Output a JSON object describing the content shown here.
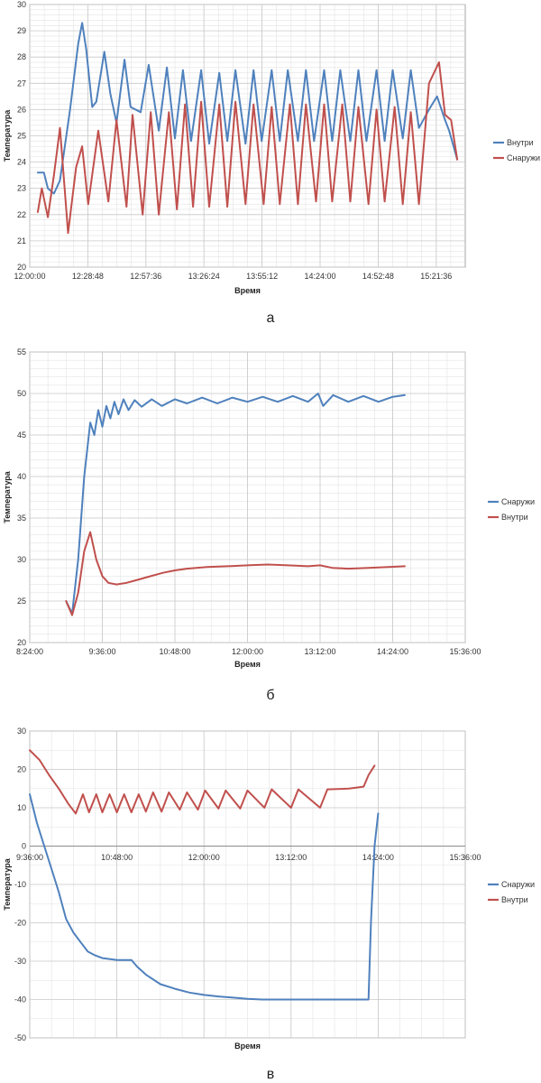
{
  "chart_data": [
    {
      "type": "line",
      "caption": "а",
      "xlabel": "Время",
      "ylabel": "Температура",
      "ylim": [
        20,
        30
      ],
      "yticks": [
        20,
        21,
        22,
        23,
        24,
        25,
        26,
        27,
        28,
        29,
        30
      ],
      "xlim": [
        "12:00:00",
        "15:36:00"
      ],
      "xticks": [
        "12:00:00",
        "12:28:48",
        "12:57:36",
        "13:26:24",
        "13:55:12",
        "14:24:00",
        "14:52:48",
        "15:21:36"
      ],
      "grid": true,
      "legend_position": "right",
      "series": [
        {
          "name": "Внутри",
          "color": "#4f81bd",
          "x": [
            "12:04:00",
            "12:07:00",
            "12:09:00",
            "12:12:00",
            "12:15:00",
            "12:20:00",
            "12:24:00",
            "12:26:00",
            "12:28:00",
            "12:31:00",
            "12:33:00",
            "12:37:00",
            "12:40:00",
            "12:43:00",
            "12:47:00",
            "12:50:00",
            "12:55:00",
            "12:59:00",
            "13:04:00",
            "13:08:00",
            "13:12:00",
            "13:16:00",
            "13:20:00",
            "13:25:00",
            "13:29:00",
            "13:34:00",
            "13:38:00",
            "13:42:00",
            "13:47:00",
            "13:51:00",
            "13:55:00",
            "14:00:00",
            "14:04:00",
            "14:08:00",
            "14:13:00",
            "14:17:00",
            "14:21:00",
            "14:26:00",
            "14:30:00",
            "14:34:00",
            "14:39:00",
            "14:43:00",
            "14:47:00",
            "14:52:00",
            "14:56:00",
            "15:00:00",
            "15:05:00",
            "15:09:00",
            "15:13:00",
            "15:18:00",
            "15:22:00",
            "15:26:00",
            "15:28:00",
            "15:32:00"
          ],
          "values": [
            23.6,
            23.6,
            23.0,
            22.8,
            23.3,
            26.0,
            28.5,
            29.3,
            28.3,
            26.1,
            26.3,
            28.2,
            26.6,
            25.5,
            27.9,
            26.1,
            25.9,
            27.7,
            25.2,
            27.6,
            24.9,
            27.5,
            24.8,
            27.5,
            24.7,
            27.4,
            24.8,
            27.5,
            24.7,
            27.5,
            24.8,
            27.5,
            24.8,
            27.5,
            24.8,
            27.5,
            24.8,
            27.5,
            24.8,
            27.5,
            24.8,
            27.5,
            24.8,
            27.5,
            24.8,
            27.5,
            24.9,
            27.5,
            25.3,
            26.0,
            26.5,
            25.6,
            25.2,
            24.1
          ]
        },
        {
          "name": "Снаружи",
          "color": "#c0504d",
          "x": [
            "12:04:00",
            "12:06:00",
            "12:09:00",
            "12:12:00",
            "12:15:00",
            "12:19:00",
            "12:23:00",
            "12:26:00",
            "12:29:00",
            "12:34:00",
            "12:39:00",
            "12:43:00",
            "12:48:00",
            "12:51:00",
            "12:56:00",
            "13:00:00",
            "13:04:00",
            "13:09:00",
            "13:13:00",
            "13:17:00",
            "13:21:00",
            "13:25:00",
            "13:29:00",
            "13:34:00",
            "13:38:00",
            "13:42:00",
            "13:47:00",
            "13:51:00",
            "13:56:00",
            "14:00:00",
            "14:04:00",
            "14:09:00",
            "14:13:00",
            "14:17:00",
            "14:22:00",
            "14:26:00",
            "14:30:00",
            "14:35:00",
            "14:39:00",
            "14:43:00",
            "14:48:00",
            "14:52:00",
            "14:56:00",
            "15:01:00",
            "15:05:00",
            "15:09:00",
            "15:13:00",
            "15:18:00",
            "15:23:00",
            "15:26:00",
            "15:29:00",
            "15:32:00"
          ],
          "values": [
            22.1,
            23.0,
            21.9,
            23.5,
            25.3,
            21.3,
            23.8,
            24.6,
            22.4,
            25.2,
            22.5,
            25.6,
            22.3,
            25.8,
            22.0,
            25.9,
            22.0,
            25.9,
            22.2,
            26.2,
            22.3,
            26.3,
            22.3,
            26.2,
            22.3,
            26.3,
            22.4,
            26.2,
            22.4,
            26.1,
            22.4,
            26.2,
            22.4,
            26.2,
            22.5,
            26.2,
            22.5,
            26.2,
            22.5,
            26.1,
            22.4,
            26.0,
            22.5,
            26.1,
            22.4,
            25.9,
            22.4,
            27.0,
            27.8,
            25.8,
            25.6,
            24.1
          ]
        }
      ]
    },
    {
      "type": "line",
      "caption": "б",
      "xlabel": "Время",
      "ylabel": "Температура",
      "ylim": [
        20,
        55
      ],
      "yticks": [
        20,
        25,
        30,
        35,
        40,
        45,
        50,
        55
      ],
      "xlim": [
        "8:24:00",
        "15:36:00"
      ],
      "xticks": [
        "8:24:00",
        "9:36:00",
        "10:48:00",
        "12:00:00",
        "13:12:00",
        "14:24:00",
        "15:36:00"
      ],
      "grid": true,
      "legend_position": "right",
      "series": [
        {
          "name": "Снаружи",
          "color": "#4f81bd",
          "x": [
            "9:00:00",
            "9:06:00",
            "9:12:00",
            "9:18:00",
            "9:24:00",
            "9:28:00",
            "9:32:00",
            "9:36:00",
            "9:40:00",
            "9:44:00",
            "9:48:00",
            "9:52:00",
            "9:57:00",
            "10:02:00",
            "10:08:00",
            "10:15:00",
            "10:25:00",
            "10:35:00",
            "10:48:00",
            "11:00:00",
            "11:15:00",
            "11:30:00",
            "11:45:00",
            "12:00:00",
            "12:15:00",
            "12:30:00",
            "12:45:00",
            "13:00:00",
            "13:10:00",
            "13:15:00",
            "13:25:00",
            "13:40:00",
            "13:55:00",
            "14:10:00",
            "14:24:00",
            "14:36:00"
          ],
          "values": [
            25.0,
            23.5,
            30.0,
            40.0,
            46.5,
            45.0,
            48.0,
            46.0,
            48.5,
            47.0,
            49.0,
            47.5,
            49.3,
            48.0,
            49.2,
            48.4,
            49.3,
            48.5,
            49.3,
            48.8,
            49.5,
            48.8,
            49.5,
            49.0,
            49.6,
            49.0,
            49.7,
            49.0,
            50.0,
            48.5,
            49.8,
            49.0,
            49.7,
            49.0,
            49.6,
            49.8
          ]
        },
        {
          "name": "Внутри",
          "color": "#c0504d",
          "x": [
            "9:00:00",
            "9:06:00",
            "9:12:00",
            "9:18:00",
            "9:24:00",
            "9:30:00",
            "9:36:00",
            "9:42:00",
            "9:50:00",
            "10:00:00",
            "10:12:00",
            "10:24:00",
            "10:36:00",
            "10:48:00",
            "11:00:00",
            "11:20:00",
            "11:40:00",
            "12:00:00",
            "12:20:00",
            "12:40:00",
            "13:00:00",
            "13:12:00",
            "13:24:00",
            "13:40:00",
            "14:00:00",
            "14:20:00",
            "14:36:00"
          ],
          "values": [
            25.0,
            23.3,
            26.0,
            31.0,
            33.3,
            30.0,
            28.0,
            27.2,
            27.0,
            27.2,
            27.6,
            28.0,
            28.4,
            28.7,
            28.9,
            29.1,
            29.2,
            29.3,
            29.4,
            29.3,
            29.2,
            29.3,
            29.0,
            28.9,
            29.0,
            29.1,
            29.2
          ]
        }
      ]
    },
    {
      "type": "line",
      "caption": "в",
      "xlabel": "Время",
      "ylabel": "Температура",
      "ylim": [
        -50,
        30
      ],
      "yticks": [
        -50,
        -40,
        -30,
        -20,
        -10,
        0,
        10,
        20,
        30
      ],
      "xlim": [
        "9:36:00",
        "15:36:00"
      ],
      "xticks": [
        "9:36:00",
        "10:48:00",
        "12:00:00",
        "13:12:00",
        "14:24:00",
        "15:36:00"
      ],
      "grid": true,
      "legend_position": "right",
      "series": [
        {
          "name": "Снаружи",
          "color": "#4f81bd",
          "x": [
            "9:36:00",
            "9:42:00",
            "9:48:00",
            "9:54:00",
            "10:00:00",
            "10:06:00",
            "10:12:00",
            "10:18:00",
            "10:24:00",
            "10:30:00",
            "10:36:00",
            "10:48:00",
            "11:00:00",
            "11:05:00",
            "11:12:00",
            "11:24:00",
            "11:36:00",
            "11:48:00",
            "12:00:00",
            "12:12:00",
            "12:24:00",
            "12:36:00",
            "12:48:00",
            "13:00:00",
            "13:12:00",
            "13:24:00",
            "13:36:00",
            "13:48:00",
            "14:00:00",
            "14:12:00",
            "14:16:00",
            "14:18:00",
            "14:21:00",
            "14:24:00"
          ],
          "values": [
            13.5,
            6.0,
            0.0,
            -6.0,
            -12.0,
            -19.0,
            -22.5,
            -25.0,
            -27.5,
            -28.5,
            -29.2,
            -29.7,
            -29.7,
            -31.5,
            -33.5,
            -36.0,
            -37.2,
            -38.2,
            -38.8,
            -39.2,
            -39.5,
            -39.8,
            -40.0,
            -40.0,
            -40.0,
            -40.0,
            -40.0,
            -40.0,
            -40.0,
            -40.0,
            -40.0,
            -20.0,
            0.0,
            8.5
          ]
        },
        {
          "name": "Внутри",
          "color": "#c0504d",
          "x": [
            "9:36:00",
            "9:44:00",
            "9:52:00",
            "10:00:00",
            "10:08:00",
            "10:14:00",
            "10:20:00",
            "10:25:00",
            "10:31:00",
            "10:36:00",
            "10:42:00",
            "10:48:00",
            "10:54:00",
            "11:00:00",
            "11:06:00",
            "11:12:00",
            "11:18:00",
            "11:25:00",
            "11:31:00",
            "11:40:00",
            "11:46:00",
            "11:55:00",
            "12:01:00",
            "12:12:00",
            "12:18:00",
            "12:30:00",
            "12:36:00",
            "12:50:00",
            "12:56:00",
            "13:12:00",
            "13:18:00",
            "13:36:00",
            "13:42:00",
            "14:00:00",
            "14:12:00",
            "14:16:00",
            "14:21:00"
          ],
          "values": [
            25.0,
            22.5,
            18.5,
            15.0,
            11.0,
            8.5,
            13.5,
            8.8,
            13.5,
            8.8,
            13.5,
            8.8,
            13.5,
            8.8,
            13.5,
            9.0,
            14.0,
            9.0,
            14.0,
            9.5,
            14.0,
            9.5,
            14.5,
            9.8,
            14.5,
            9.8,
            14.5,
            10.0,
            14.8,
            10.0,
            14.8,
            10.0,
            14.8,
            15.0,
            15.5,
            18.5,
            21.0
          ]
        }
      ]
    }
  ]
}
